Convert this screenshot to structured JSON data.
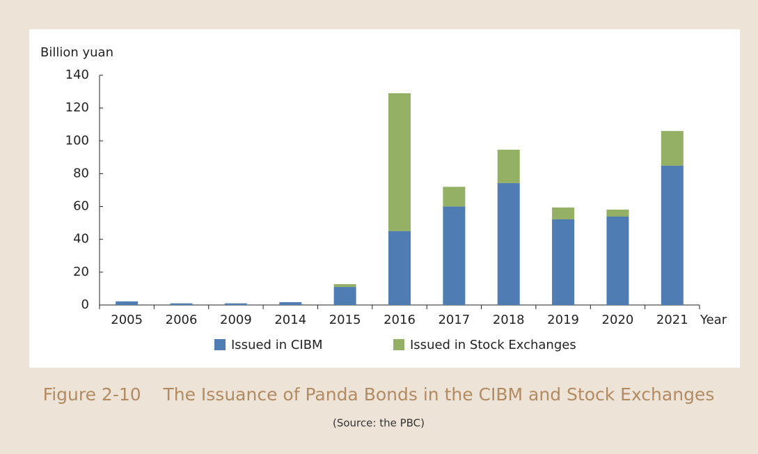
{
  "chart_data": {
    "type": "stacked_bar",
    "title": "Figure 2-10    The Issuance of Panda Bonds in the CIBM and Stock Exchanges",
    "subtitle": "(Source: the PBC)",
    "y_label": "Billion yuan",
    "x_label": "Year",
    "categories": [
      "2005",
      "2006",
      "2009",
      "2014",
      "2015",
      "2016",
      "2017",
      "2018",
      "2019",
      "2020",
      "2021"
    ],
    "series": [
      {
        "name": "Issued in CIBM",
        "color": "#4f7db3",
        "values": [
          2.2,
          1,
          1,
          1.7,
          11,
          45,
          60,
          74.3,
          52.2,
          53.9,
          84.9
        ]
      },
      {
        "name": "Issued in Stock Exchanges",
        "color": "#93b064",
        "values": [
          0,
          0,
          0,
          0,
          1.7,
          84,
          12,
          20.3,
          7.2,
          4.2,
          21.1
        ]
      }
    ],
    "ylim": [
      0,
      140
    ],
    "yticks": [
      0,
      20,
      40,
      60,
      80,
      100,
      120,
      140
    ],
    "grid": false,
    "legend": "bottom"
  }
}
